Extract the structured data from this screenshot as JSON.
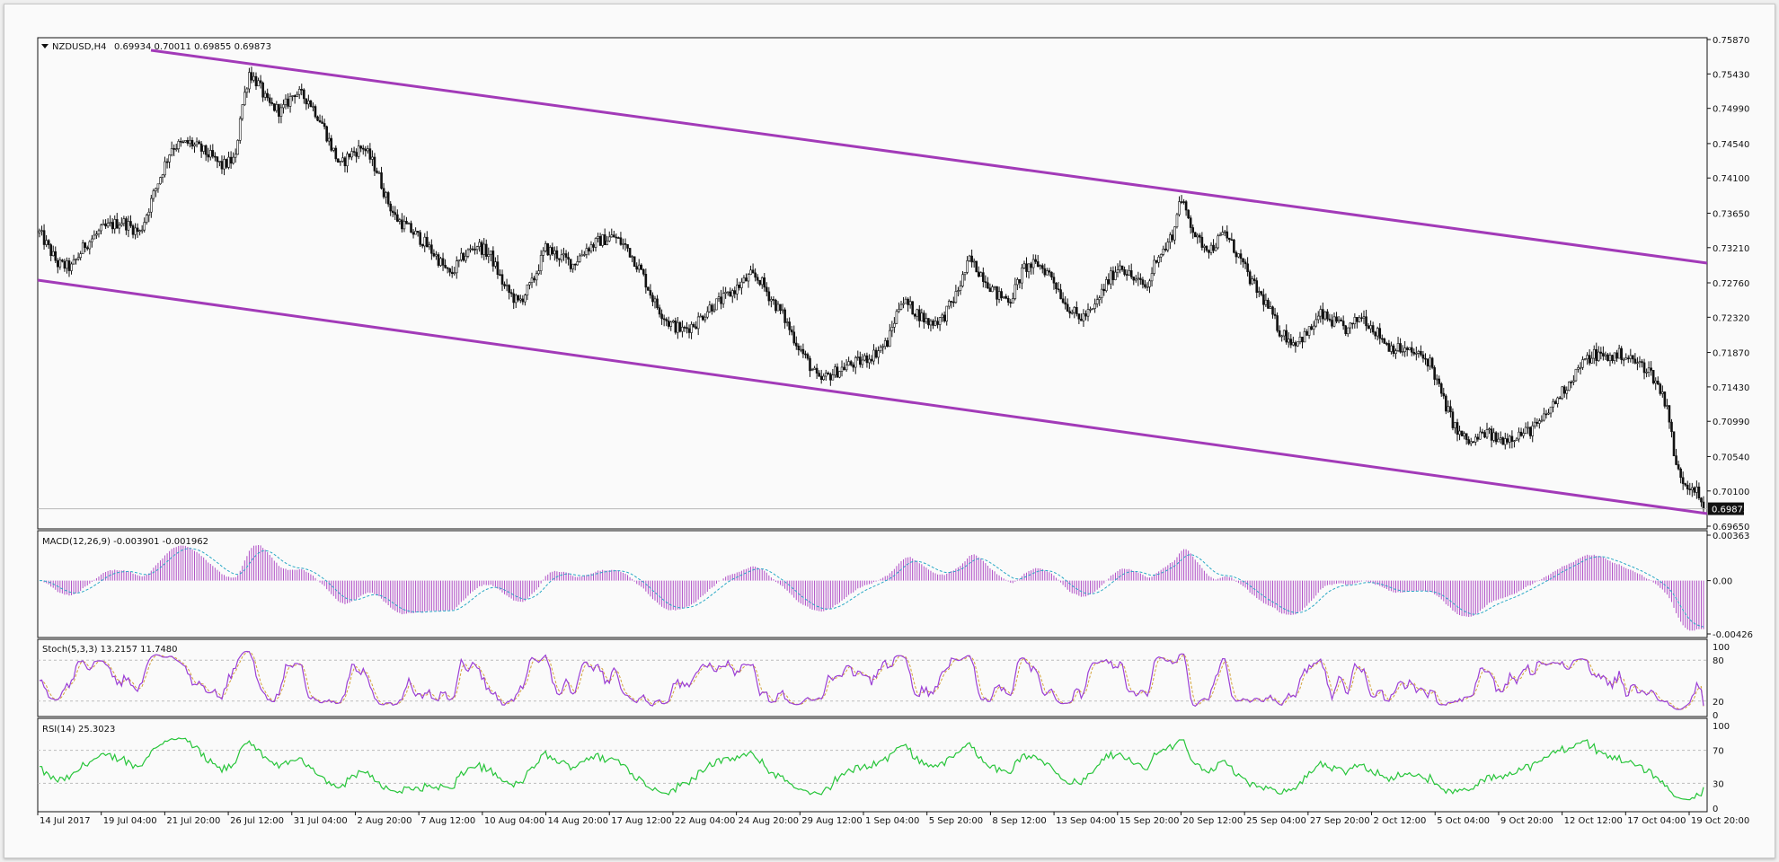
{
  "colors": {
    "background": "#fafafa",
    "panel_border": "#111111",
    "candle": "#111111",
    "channel": "#a23ab8",
    "macd_histogram": "#b04fc6",
    "macd_signal": "#29a9c5",
    "stoch_main": "#9b3fd6",
    "stoch_signal": "#d4a33a",
    "rsi": "#27c53a",
    "level_line": "#b8b8b8"
  },
  "header": {
    "title": "NZDUSD,H4",
    "ohlc": "0.69934 0.70011 0.69855 0.69873"
  },
  "chart_data": [
    {
      "type": "candlestick",
      "symbol": "NZDUSD",
      "timeframe": "H4",
      "ylim": [
        0.6965,
        0.7587
      ],
      "y_ticks": [
        "0.75870",
        "0.75430",
        "0.74990",
        "0.74540",
        "0.74100",
        "0.73650",
        "0.73210",
        "0.72760",
        "0.72320",
        "0.71870",
        "0.71430",
        "0.70990",
        "0.70540",
        "0.70100",
        "0.69650"
      ],
      "last_price": "0.69873",
      "x_ticks": [
        "14 Jul 2017",
        "19 Jul 04:00",
        "21 Jul 20:00",
        "26 Jul 12:00",
        "31 Jul 04:00",
        "2 Aug 20:00",
        "7 Aug 12:00",
        "10 Aug 04:00",
        "14 Aug 20:00",
        "17 Aug 12:00",
        "22 Aug 04:00",
        "24 Aug 20:00",
        "29 Aug 12:00",
        "1 Sep 04:00",
        "5 Sep 20:00",
        "8 Sep 12:00",
        "13 Sep 04:00",
        "15 Sep 20:00",
        "20 Sep 12:00",
        "25 Sep 04:00",
        "27 Sep 20:00",
        "2 Oct 12:00",
        "5 Oct 04:00",
        "9 Oct 20:00",
        "12 Oct 12:00",
        "17 Oct 04:00",
        "19 Oct 20:00"
      ],
      "close_path": [
        [
          0,
          0.734
        ],
        [
          8,
          0.73
        ],
        [
          14,
          0.7295
        ],
        [
          20,
          0.7325
        ],
        [
          28,
          0.7345
        ],
        [
          36,
          0.7355
        ],
        [
          44,
          0.734
        ],
        [
          52,
          0.7405
        ],
        [
          58,
          0.745
        ],
        [
          66,
          0.7455
        ],
        [
          74,
          0.744
        ],
        [
          80,
          0.7425
        ],
        [
          86,
          0.7435
        ],
        [
          88,
          0.749
        ],
        [
          92,
          0.7545
        ],
        [
          96,
          0.753
        ],
        [
          100,
          0.7505
        ],
        [
          106,
          0.7495
        ],
        [
          112,
          0.752
        ],
        [
          118,
          0.751
        ],
        [
          124,
          0.748
        ],
        [
          128,
          0.745
        ],
        [
          132,
          0.7425
        ],
        [
          136,
          0.744
        ],
        [
          142,
          0.745
        ],
        [
          148,
          0.742
        ],
        [
          152,
          0.7385
        ],
        [
          156,
          0.736
        ],
        [
          162,
          0.7345
        ],
        [
          168,
          0.733
        ],
        [
          174,
          0.731
        ],
        [
          180,
          0.7285
        ],
        [
          186,
          0.731
        ],
        [
          192,
          0.7325
        ],
        [
          198,
          0.731
        ],
        [
          204,
          0.727
        ],
        [
          210,
          0.725
        ],
        [
          216,
          0.7275
        ],
        [
          222,
          0.732
        ],
        [
          228,
          0.731
        ],
        [
          234,
          0.73
        ],
        [
          240,
          0.732
        ],
        [
          246,
          0.733
        ],
        [
          252,
          0.7335
        ],
        [
          258,
          0.732
        ],
        [
          264,
          0.729
        ],
        [
          270,
          0.725
        ],
        [
          276,
          0.7225
        ],
        [
          282,
          0.7215
        ],
        [
          288,
          0.7225
        ],
        [
          294,
          0.7245
        ],
        [
          300,
          0.7255
        ],
        [
          306,
          0.727
        ],
        [
          312,
          0.7285
        ],
        [
          316,
          0.728
        ],
        [
          320,
          0.726
        ],
        [
          326,
          0.7235
        ],
        [
          332,
          0.72
        ],
        [
          338,
          0.717
        ],
        [
          342,
          0.715
        ],
        [
          348,
          0.716
        ],
        [
          354,
          0.717
        ],
        [
          360,
          0.7175
        ],
        [
          366,
          0.7185
        ],
        [
          372,
          0.72
        ],
        [
          378,
          0.7255
        ],
        [
          384,
          0.724
        ],
        [
          390,
          0.7225
        ],
        [
          396,
          0.723
        ],
        [
          402,
          0.726
        ],
        [
          408,
          0.7305
        ],
        [
          414,
          0.7285
        ],
        [
          420,
          0.726
        ],
        [
          426,
          0.7255
        ],
        [
          432,
          0.7295
        ],
        [
          438,
          0.73
        ],
        [
          444,
          0.7285
        ],
        [
          450,
          0.725
        ],
        [
          456,
          0.723
        ],
        [
          462,
          0.724
        ],
        [
          468,
          0.7275
        ],
        [
          474,
          0.73
        ],
        [
          480,
          0.728
        ],
        [
          486,
          0.727
        ],
        [
          490,
          0.731
        ],
        [
          494,
          0.732
        ],
        [
          498,
          0.7345
        ],
        [
          500,
          0.7385
        ],
        [
          504,
          0.736
        ],
        [
          508,
          0.733
        ],
        [
          514,
          0.732
        ],
        [
          520,
          0.734
        ],
        [
          526,
          0.731
        ],
        [
          532,
          0.7275
        ],
        [
          538,
          0.725
        ],
        [
          544,
          0.7215
        ],
        [
          550,
          0.72
        ],
        [
          556,
          0.721
        ],
        [
          562,
          0.7235
        ],
        [
          568,
          0.7225
        ],
        [
          574,
          0.7215
        ],
        [
          580,
          0.7235
        ],
        [
          586,
          0.7215
        ],
        [
          592,
          0.7195
        ],
        [
          598,
          0.719
        ],
        [
          604,
          0.7185
        ],
        [
          610,
          0.7175
        ],
        [
          616,
          0.7125
        ],
        [
          622,
          0.7085
        ],
        [
          628,
          0.707
        ],
        [
          634,
          0.7085
        ],
        [
          640,
          0.7075
        ],
        [
          646,
          0.708
        ],
        [
          652,
          0.7085
        ],
        [
          658,
          0.7095
        ],
        [
          664,
          0.712
        ],
        [
          670,
          0.7145
        ],
        [
          676,
          0.717
        ],
        [
          682,
          0.7185
        ],
        [
          688,
          0.718
        ],
        [
          694,
          0.7185
        ],
        [
          700,
          0.7175
        ],
        [
          706,
          0.7165
        ],
        [
          710,
          0.7145
        ],
        [
          714,
          0.712
        ],
        [
          716,
          0.708
        ],
        [
          718,
          0.704
        ],
        [
          722,
          0.702
        ],
        [
          726,
          0.7015
        ],
        [
          730,
          0.6987
        ]
      ]
    },
    {
      "type": "bar+line",
      "name": "MACD(12,26,9) -0.003901 -0.001962",
      "y_ticks": [
        "0.00363",
        "0.00",
        "-0.00426"
      ],
      "ylim": [
        -0.00426,
        0.00363
      ],
      "macd": -0.003901,
      "signal": -0.001962
    },
    {
      "type": "line",
      "name": "Stoch(5,3,3) 13.2157 11.7480",
      "y_ticks": [
        "100",
        "80",
        "20",
        "0"
      ],
      "ylim": [
        0,
        100
      ],
      "main": 13.2157,
      "signal": 11.748
    },
    {
      "type": "line",
      "name": "RSI(14) 25.3023",
      "y_ticks": [
        "100",
        "70",
        "30",
        "0"
      ],
      "ylim": [
        0,
        100
      ],
      "value": 25.3023
    }
  ]
}
